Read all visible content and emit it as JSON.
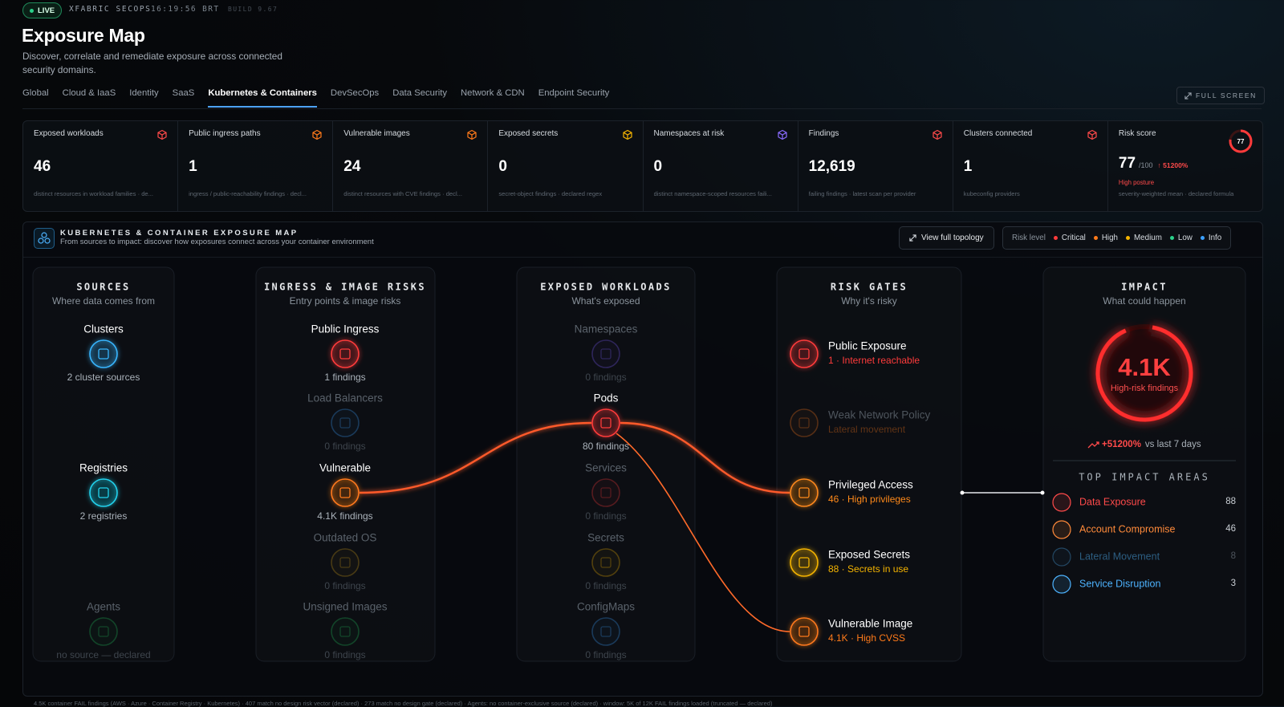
{
  "header": {
    "status": "LIVE",
    "brand": "XFABRIC SECOPS",
    "clock": "16:19:56 BRT",
    "build": "BUILD 9.67",
    "title": "Exposure Map",
    "subtitle": "Discover, correlate and remediate exposure across connected security domains."
  },
  "tabs": [
    "Global",
    "Cloud & IaaS",
    "Identity",
    "SaaS",
    "Kubernetes & Containers",
    "DevSecOps",
    "Data Security",
    "Network & CDN",
    "Endpoint Security"
  ],
  "fullscreen": "FULL SCREEN",
  "kpis": [
    {
      "label": "Exposed workloads",
      "value": 46,
      "note": "distinct resources in workload families · de..."
    },
    {
      "label": "Public ingress paths",
      "value": 1,
      "note": "ingress / public-reachability findings · decl..."
    },
    {
      "label": "Vulnerable images",
      "value": 24,
      "note": "distinct resources with CVE findings · decl..."
    },
    {
      "label": "Exposed secrets",
      "value": 0,
      "note": "secret-object findings · declared regex"
    },
    {
      "label": "Namespaces at risk",
      "value": 0,
      "note": "distinct namespace-scoped resources faili..."
    },
    {
      "label": "Findings",
      "value": "12,619",
      "note": "failing findings · latest scan per provider"
    },
    {
      "label": "Clusters connected",
      "value": 1,
      "note": "kubeconfig providers"
    }
  ],
  "risk_score": {
    "label": "Risk score",
    "value": 77,
    "scale": "/100",
    "delta": "↑ 51200%",
    "posture": "High posture",
    "note": "severity-weighted mean · declared formula"
  },
  "map": {
    "title": "KUBERNETES & CONTAINER EXPOSURE MAP",
    "subtitle": "From sources to impact: discover how exposures connect across your container environment",
    "topology_button": "View full topology",
    "legend_label": "Risk level",
    "levels": [
      {
        "name": "Critical",
        "color": "#ff3b3b"
      },
      {
        "name": "High",
        "color": "#ff7a1a"
      },
      {
        "name": "Medium",
        "color": "#f5b400"
      },
      {
        "name": "Low",
        "color": "#2bd18a"
      },
      {
        "name": "Info",
        "color": "#3aa0ff"
      }
    ],
    "columns": [
      {
        "title": "SOURCES",
        "subtitle": "Where data comes from",
        "nodes": [
          {
            "label": "Clusters",
            "note": "2 cluster sources"
          },
          {
            "label": "Registries",
            "note": "2 registries"
          },
          {
            "label": "Agents",
            "note": "no source — declared"
          }
        ]
      },
      {
        "title": "INGRESS & IMAGE RISKS",
        "subtitle": "Entry points & image risks",
        "nodes": [
          {
            "label": "Public Ingress",
            "note": "1 findings"
          },
          {
            "label": "Load Balancers",
            "note": "0 findings"
          },
          {
            "label": "Vulnerable",
            "note": "4.1K findings"
          },
          {
            "label": "Outdated OS",
            "note": "0 findings"
          },
          {
            "label": "Unsigned Images",
            "note": "0 findings"
          }
        ]
      },
      {
        "title": "EXPOSED WORKLOADS",
        "subtitle": "What's exposed",
        "nodes": [
          {
            "label": "Namespaces",
            "note": "0 findings"
          },
          {
            "label": "Pods",
            "note": "80 findings"
          },
          {
            "label": "Services",
            "note": "0 findings"
          },
          {
            "label": "Secrets",
            "note": "0 findings"
          },
          {
            "label": "ConfigMaps",
            "note": "0 findings"
          }
        ]
      }
    ],
    "gates": {
      "title": "RISK GATES",
      "subtitle": "Why it's risky",
      "items": [
        {
          "label": "Public Exposure",
          "detail": "1 · Internet reachable"
        },
        {
          "label": "Weak Network Policy",
          "detail": "Lateral movement"
        },
        {
          "label": "Privileged Access",
          "detail": "46 · High privileges"
        },
        {
          "label": "Exposed Secrets",
          "detail": "88 · Secrets in use"
        },
        {
          "label": "Vulnerable Image",
          "detail": "4.1K · High CVSS"
        }
      ]
    },
    "impact": {
      "title": "IMPACT",
      "subtitle": "What could happen",
      "ring_value": "4.1K",
      "ring_label": "High-risk findings",
      "trend": "+51200%",
      "trend_note": "vs last 7 days",
      "areas_title": "TOP IMPACT AREAS",
      "areas": [
        {
          "label": "Data Exposure",
          "value": 88
        },
        {
          "label": "Account Compromise",
          "value": 46
        },
        {
          "label": "Lateral Movement",
          "value": 8
        },
        {
          "label": "Service Disruption",
          "value": 3
        }
      ]
    }
  },
  "footer": "4.5K container FAIL findings (AWS · Azure · Container Registry · Kubernetes) · 407 match no design risk vector (declared) · 273 match no design gate (declared) · Agents: no container-exclusive source (declared) · window: 5K of 12K FAIL findings loaded (truncated — declared)"
}
